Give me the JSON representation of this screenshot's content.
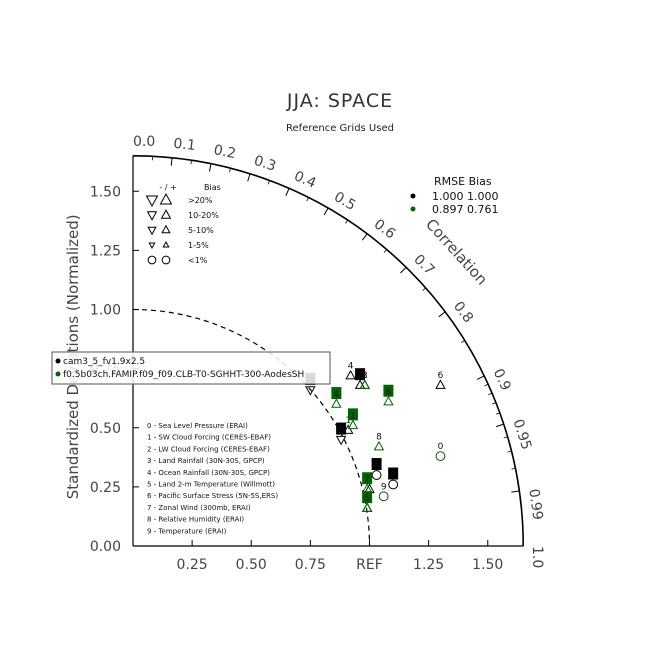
{
  "chart_data": {
    "type": "scatter",
    "title": "JJA: SPACE",
    "subtitle": "Reference Grids Used",
    "ylabel": "Standardized Deviations (Normalized)",
    "corr_label": "Correlation",
    "ref_label": "REF",
    "std_ticks": [
      "0.00",
      "0.25",
      "0.50",
      "0.75",
      "1.00",
      "1.25",
      "1.50"
    ],
    "x_ticks": [
      "0.25",
      "0.50",
      "0.75",
      "1.25",
      "1.50"
    ],
    "corr_ticks": [
      {
        "label": "0.0",
        "r": 0.0
      },
      {
        "label": "0.1",
        "r": 0.1
      },
      {
        "label": "0.2",
        "r": 0.2
      },
      {
        "label": "0.3",
        "r": 0.3
      },
      {
        "label": "0.4",
        "r": 0.4
      },
      {
        "label": "0.5",
        "r": 0.5
      },
      {
        "label": "0.6",
        "r": 0.6
      },
      {
        "label": "0.7",
        "r": 0.7
      },
      {
        "label": "0.8",
        "r": 0.8
      },
      {
        "label": "0.9",
        "r": 0.9
      },
      {
        "label": "0.95",
        "r": 0.95
      },
      {
        "label": "0.99",
        "r": 0.99
      },
      {
        "label": "1.0",
        "r": 1.0
      }
    ],
    "max_std": 1.65,
    "bias_legend": {
      "header_sign": "- / +",
      "header_bias": "Bias",
      "rows": [
        ">20%",
        "10-20%",
        "5-10%",
        "1-5%",
        "<1%"
      ]
    },
    "rmse_legend": {
      "header": "RMSE  Bias",
      "rows": [
        {
          "color": "#000000",
          "text": "1.000 1.000"
        },
        {
          "color": "#006400",
          "text": "0.897 0.761"
        }
      ]
    },
    "cases": [
      {
        "label": "cam3_5_fv1.9x2.5",
        "color": "#000000"
      },
      {
        "label": "f0.5b03ch.FAMIP.f09_f09.CLB-T0-SGHHT-300-AodesSH",
        "color": "#006400"
      }
    ],
    "variables": [
      "0 - Sea Level Pressure (ERAI)",
      "1 - SW Cloud Forcing (CERES-EBAF)",
      "2 - LW Cloud Forcing (CERES-EBAF)",
      "3 - Land Rainfall (30N-30S, GPCP)",
      "4 - Ocean Rainfall (30N-30S, GPCP)",
      "5 - Land 2-m Temperature (Willmott)",
      "6 - Pacific Surface Stress (5N-5S,ERS)",
      "7 - Zonal Wind (300mb, ERAI)",
      "8 - Relative Humidity (ERAI)",
      "9 - Temperature (ERAI)"
    ],
    "series": [
      {
        "name": "cam3_5_fv1.9x2.5",
        "color": "#000000",
        "points": [
          {
            "label": "0",
            "x": 1.03,
            "y": 0.3,
            "marker": "circle",
            "boxed": true
          },
          {
            "label": "1",
            "x": 0.91,
            "y": 0.49,
            "marker": "up",
            "boxed": false
          },
          {
            "label": "2",
            "x": 0.96,
            "y": 0.68,
            "marker": "up",
            "boxed": true
          },
          {
            "label": "3",
            "x": 0.75,
            "y": 0.66,
            "marker": "down",
            "boxed": true
          },
          {
            "label": "4",
            "x": 0.92,
            "y": 0.72,
            "marker": "up",
            "boxed": false
          },
          {
            "label": "5",
            "x": 0.99,
            "y": 0.16,
            "marker": "up",
            "boxed": false
          },
          {
            "label": "6",
            "x": 1.3,
            "y": 0.68,
            "marker": "up",
            "boxed": false
          },
          {
            "label": "7",
            "x": 1.0,
            "y": 0.24,
            "marker": "up",
            "boxed": false
          },
          {
            "label": "8",
            "x": 0.88,
            "y": 0.45,
            "marker": "down",
            "boxed": true
          },
          {
            "label": "9",
            "x": 1.1,
            "y": 0.26,
            "marker": "circle",
            "boxed": true
          }
        ]
      },
      {
        "name": "f0.5b03ch.FAMIP.f09_f09.CLB-T0-SGHHT-300-AodesSH",
        "color": "#006400",
        "points": [
          {
            "label": "0",
            "x": 1.3,
            "y": 0.38,
            "marker": "circle",
            "boxed": false
          },
          {
            "label": "1",
            "x": 0.93,
            "y": 0.51,
            "marker": "up",
            "boxed": true
          },
          {
            "label": "2",
            "x": 0.98,
            "y": 0.68,
            "marker": "up",
            "boxed": false
          },
          {
            "label": "3",
            "x": 0.98,
            "y": 0.68,
            "marker": "up",
            "boxed": false
          },
          {
            "label": "4",
            "x": 0.86,
            "y": 0.6,
            "marker": "up",
            "boxed": true
          },
          {
            "label": "5",
            "x": 0.99,
            "y": 0.16,
            "marker": "up",
            "boxed": true
          },
          {
            "label": "6",
            "x": 1.08,
            "y": 0.61,
            "marker": "up",
            "boxed": true
          },
          {
            "label": "7",
            "x": 0.99,
            "y": 0.24,
            "marker": "up",
            "boxed": true
          },
          {
            "label": "8",
            "x": 1.04,
            "y": 0.42,
            "marker": "up",
            "boxed": false
          },
          {
            "label": "9",
            "x": 1.06,
            "y": 0.21,
            "marker": "circle",
            "boxed": false
          }
        ]
      }
    ]
  }
}
